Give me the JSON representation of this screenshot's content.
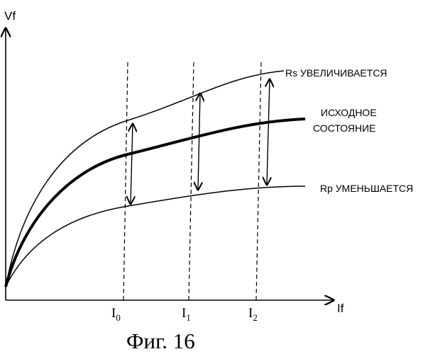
{
  "figure": {
    "caption": "Фиг. 16",
    "axes": {
      "y_label": "Vf",
      "x_label": "If"
    },
    "x_ticks": [
      {
        "base": "I",
        "sub": "0"
      },
      {
        "base": "I",
        "sub": "1"
      },
      {
        "base": "I",
        "sub": "2"
      }
    ],
    "curves": [
      {
        "id": "rs",
        "label": "Rs УВЕЛИЧИВАЕТСЯ",
        "emphasis": "thin"
      },
      {
        "id": "base",
        "label_lines": [
          "ИСХОДНОЕ",
          "СОСТОЯНИЕ"
        ],
        "emphasis": "thick"
      },
      {
        "id": "rp",
        "label": "Rp УМЕНЬШАЕТСЯ",
        "emphasis": "thin"
      }
    ]
  }
}
